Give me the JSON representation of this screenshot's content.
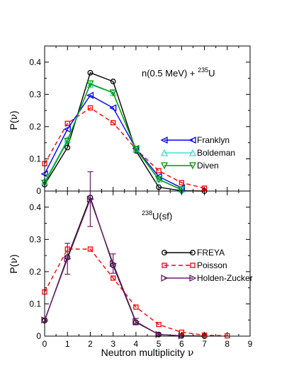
{
  "chart_data": [
    {
      "type": "line",
      "panel": "top",
      "annotation": {
        "prefix": "n(0.5 MeV) + ",
        "sup": "235",
        "suffix": "U"
      },
      "ylabel": {
        "main": "P(",
        "greek": "ν",
        "end": ")"
      },
      "ylim": [
        0,
        0.45
      ],
      "yticks": [
        "0",
        "0.1",
        "0.2",
        "0.3",
        "0.4"
      ],
      "xlim": [
        0,
        9
      ],
      "legend_position": "right-middle",
      "series": [
        {
          "key": "freya",
          "color": "#000000",
          "dash": "",
          "marker": "circle",
          "in_legend": false,
          "x": [
            0,
            1,
            2,
            3,
            4,
            5,
            6,
            7
          ],
          "y": [
            0.02,
            0.135,
            0.367,
            0.34,
            0.125,
            0.012,
            0.001,
            0.0
          ]
        },
        {
          "key": "poisson",
          "color": "#ff0000",
          "dash": "6,4",
          "marker": "square",
          "in_legend": false,
          "x": [
            0,
            1,
            2,
            3,
            4,
            5,
            6,
            7
          ],
          "y": [
            0.085,
            0.21,
            0.258,
            0.212,
            0.13,
            0.063,
            0.026,
            0.009
          ]
        },
        {
          "key": "franklyn",
          "name": "Franklyn",
          "color": "#0000ff",
          "dash": "",
          "marker": "triangle-left",
          "in_legend": true,
          "x": [
            0,
            1,
            2,
            3,
            4,
            5,
            6
          ],
          "y": [
            0.053,
            0.192,
            0.297,
            0.258,
            0.132,
            0.045,
            0.01
          ]
        },
        {
          "key": "boldeman",
          "name": "Boldeman",
          "color": "#40e0d0",
          "dash": "",
          "marker": "triangle-up",
          "in_legend": true,
          "x": [
            0,
            1,
            2,
            3,
            4,
            5,
            6
          ],
          "y": [
            0.03,
            0.16,
            0.33,
            0.305,
            0.13,
            0.037,
            0.005
          ]
        },
        {
          "key": "diven",
          "name": "Diven",
          "color": "#009900",
          "dash": "",
          "marker": "triangle-down",
          "in_legend": true,
          "x": [
            0,
            1,
            2,
            3,
            4,
            5,
            6
          ],
          "y": [
            0.025,
            0.155,
            0.333,
            0.305,
            0.13,
            0.036,
            0.004
          ]
        }
      ]
    },
    {
      "type": "line",
      "panel": "bottom",
      "annotation": {
        "prefix": "",
        "sup": "238",
        "suffix": "U(sf)"
      },
      "ylabel": {
        "main": "P(",
        "greek": "ν",
        "end": ")"
      },
      "xlabel": {
        "main": "Neutron multiplicity ",
        "greek": "ν"
      },
      "ylim": [
        0,
        0.45
      ],
      "yticks": [
        "0",
        "0.1",
        "0.2",
        "0.3",
        "0.4"
      ],
      "xlim": [
        0,
        9
      ],
      "xticks": [
        "0",
        "1",
        "2",
        "3",
        "4",
        "5",
        "6",
        "7",
        "8",
        "9"
      ],
      "legend_position": "right-middle",
      "series": [
        {
          "key": "freya",
          "name": "FREYA",
          "color": "#000000",
          "dash": "",
          "marker": "circle",
          "in_legend": true,
          "x": [
            0,
            1,
            2,
            3,
            4,
            5,
            6,
            7
          ],
          "y": [
            0.048,
            0.245,
            0.43,
            0.22,
            0.043,
            0.005,
            0.001,
            0.0
          ]
        },
        {
          "key": "poisson",
          "name": "Poisson",
          "color": "#ff0000",
          "dash": "6,4",
          "marker": "square",
          "in_legend": true,
          "x": [
            0,
            1,
            2,
            3,
            4,
            5,
            6,
            7,
            8
          ],
          "y": [
            0.137,
            0.27,
            0.27,
            0.18,
            0.09,
            0.036,
            0.012,
            0.003,
            0.001
          ]
        },
        {
          "key": "holden",
          "name": "Holden-Zucker",
          "color": "#6b1d6b",
          "dash": "",
          "marker": "triangle-right",
          "in_legend": true,
          "x": [
            0,
            1,
            2,
            3,
            4,
            5,
            6
          ],
          "y": [
            0.05,
            0.24,
            0.425,
            0.225,
            0.045,
            0.005,
            0.001
          ],
          "err": [
            0.005,
            0.048,
            0.085,
            0.03,
            0.01,
            0.002,
            0.001
          ]
        }
      ]
    }
  ]
}
